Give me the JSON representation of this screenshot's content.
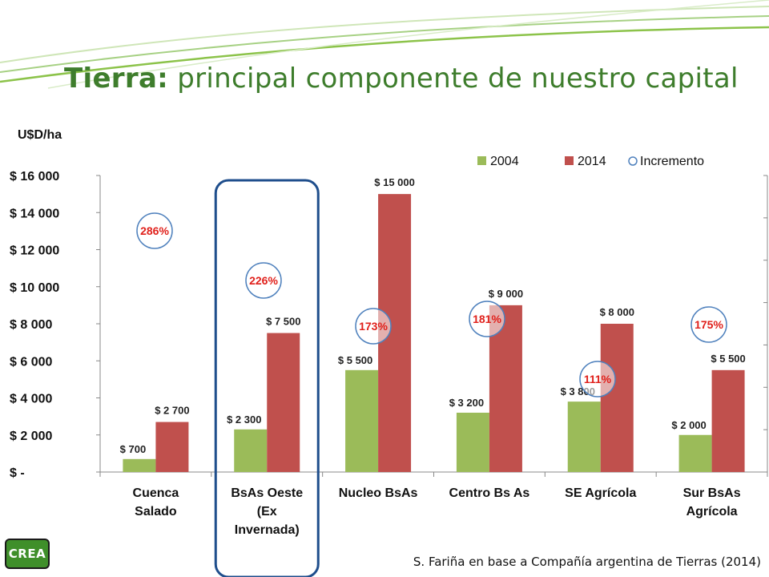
{
  "slide": {
    "title_bold": "Tierra:",
    "title_rest": " principal componente de nuestro capital",
    "source": "S. Fariña en base a Compañía argentina de Tierras (2014)",
    "logo": "CREA",
    "colors": {
      "title": "#3e7d2c",
      "accent_line": "#8cc34a",
      "highlight_box": "#1f4e8c"
    }
  },
  "chart_data": {
    "type": "bar",
    "title": "",
    "ylabel": "U$D/ha",
    "xlabel": "",
    "ylim": [
      0,
      16000
    ],
    "yticks": [
      0,
      2000,
      4000,
      6000,
      8000,
      10000,
      12000,
      14000,
      16000
    ],
    "ytick_labels": [
      "$ -",
      "$ 2 000",
      "$ 4 000",
      "$ 6 000",
      "$ 8 000",
      "$ 10 000",
      "$ 12 000",
      "$ 14 000",
      "$ 16 000"
    ],
    "grid": false,
    "legend_position": "top-right",
    "categories": [
      "Cuenca Salado",
      "BsAs Oeste (Ex Invernada)",
      "Nucleo BsAs",
      "Centro Bs As",
      "SE Agrícola",
      "Sur BsAs Agrícola"
    ],
    "category_lines": [
      [
        "Cuenca",
        "Salado"
      ],
      [
        "BsAs Oeste",
        "(Ex",
        "Invernada)"
      ],
      [
        "Nucleo BsAs"
      ],
      [
        "Centro Bs As"
      ],
      [
        "SE Agrícola"
      ],
      [
        "Sur BsAs",
        "Agrícola"
      ]
    ],
    "series": [
      {
        "name": "2004",
        "color": "#9bbb59",
        "values": [
          700,
          2300,
          5500,
          3200,
          3800,
          2000
        ],
        "labels": [
          "$ 700",
          "$ 2 300",
          "$ 5 500",
          "$ 3 200",
          "$ 3 800",
          "$ 2 000"
        ]
      },
      {
        "name": "2014",
        "color": "#c0504d",
        "values": [
          2700,
          7500,
          15000,
          9000,
          8000,
          5500
        ],
        "labels": [
          "$ 2 700",
          "$ 7 500",
          "$ 15 000",
          "$ 9 000",
          "$ 8 000",
          "$ 5 500"
        ]
      }
    ],
    "increment": {
      "name": "Incremento",
      "values": [
        286,
        226,
        173,
        181,
        111,
        175
      ],
      "labels": [
        "286%",
        "226%",
        "173%",
        "181%",
        "111%",
        "175%"
      ],
      "unit": "%"
    },
    "highlighted_category": "BsAs Oeste (Ex Invernada)"
  }
}
